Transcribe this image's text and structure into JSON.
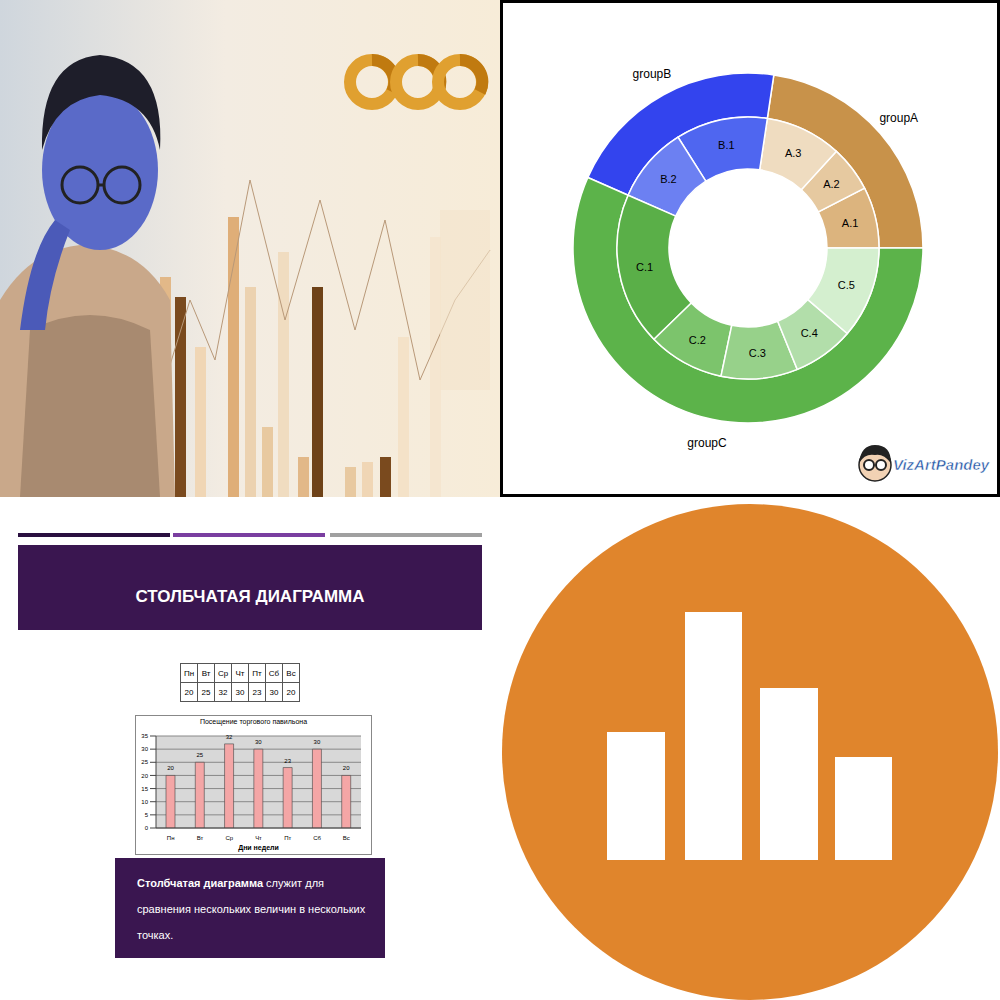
{
  "chart_data": [
    {
      "type": "pie",
      "rings": [
        {
          "categories": [
            "groupA",
            "groupB",
            "groupC"
          ],
          "values": [
            12,
            11,
            30
          ],
          "colors": [
            "#c8924a",
            "#3344ee",
            "#5cb34a"
          ]
        },
        {
          "categories": [
            "A.1",
            "A.2",
            "A.3",
            "B.1",
            "B.2",
            "C.1",
            "C.2",
            "C.3",
            "C.4",
            "C.5"
          ],
          "values": [
            4,
            3,
            5,
            6,
            5,
            10,
            5,
            5,
            4,
            6
          ],
          "colors": [
            "#dcb47e",
            "#e6c9a0",
            "#efdcc0",
            "#4f66f0",
            "#6c80f2",
            "#5aaf48",
            "#7cc46c",
            "#97d18a",
            "#b2deaa",
            "#d4efcf"
          ]
        }
      ],
      "watermark": "VizArtPandey"
    },
    {
      "type": "bar",
      "title": "Посещение торгового павильона",
      "x_label": "Дни недели",
      "categories": [
        "Пн",
        "Вт",
        "Ср",
        "Чт",
        "Пт",
        "Сб",
        "Вс"
      ],
      "values": [
        20,
        25,
        32,
        30,
        23,
        30,
        20
      ],
      "color": "#f4a6a6",
      "ylim": [
        0,
        35
      ],
      "yticks": [
        0,
        5,
        10,
        15,
        20,
        25,
        30,
        35
      ],
      "grid": true,
      "data_labels": true
    }
  ],
  "slide": {
    "title": "СТОЛБЧАТАЯ ДИАГРАММА",
    "table": {
      "header": [
        "Пн",
        "Вт",
        "Ср",
        "Чт",
        "Пт",
        "Сб",
        "Вс"
      ],
      "values": [
        20,
        25,
        32,
        30,
        23,
        30,
        20
      ]
    },
    "caption": {
      "bold": "Столбчатая диаграмма",
      "text": "служит для сравнения нескольких величин в нескольких точках."
    }
  }
}
